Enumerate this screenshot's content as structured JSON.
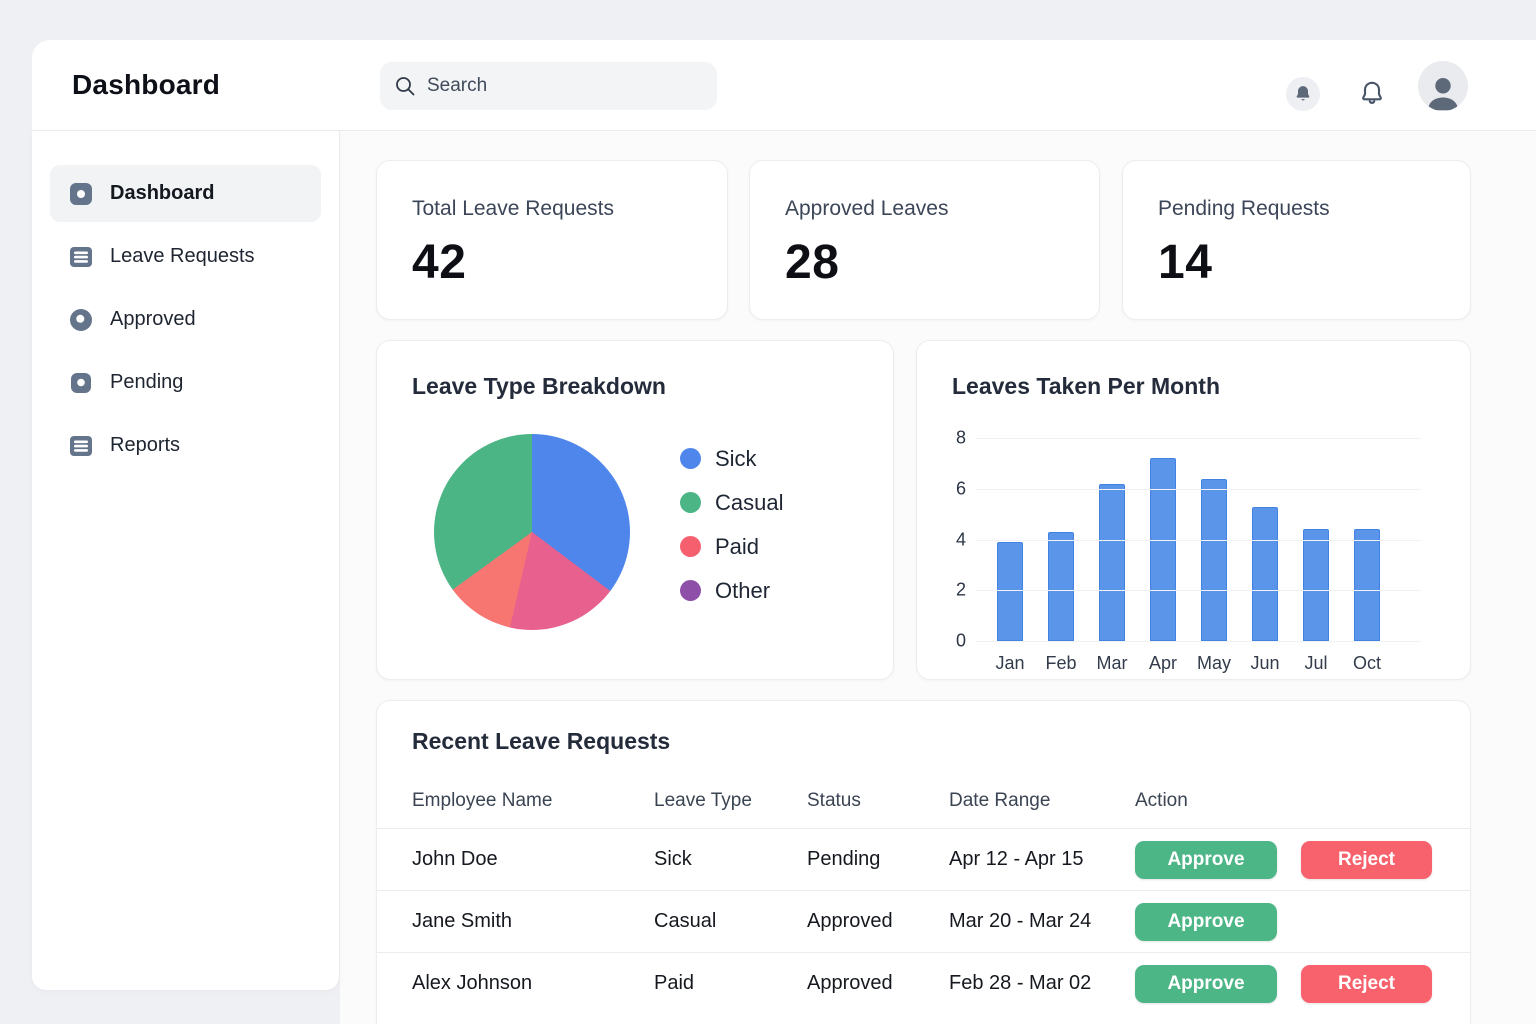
{
  "topbar": {
    "brand": "Dashboard",
    "search_placeholder": "Search",
    "icons": [
      "notification-filled-bell-icon",
      "bell-icon",
      "user-avatar"
    ]
  },
  "sidebar": {
    "items": [
      {
        "label": "Dashboard",
        "icon": "grid-dot-icon",
        "active": true
      },
      {
        "label": "Leave Requests",
        "icon": "list-icon",
        "active": false
      },
      {
        "label": "Approved",
        "icon": "circle-dot-icon",
        "active": false
      },
      {
        "label": "Pending",
        "icon": "square-dot-icon",
        "active": false
      },
      {
        "label": "Reports",
        "icon": "list-icon",
        "active": false
      }
    ]
  },
  "stats": [
    {
      "label": "Total Leave Requests",
      "value": "42"
    },
    {
      "label": "Approved Leaves",
      "value": "28"
    },
    {
      "label": "Pending Requests",
      "value": "14"
    }
  ],
  "chart_data": [
    {
      "type": "pie",
      "title": "Leave Type Breakdown",
      "start_angle_deg": 0,
      "direction": "clockwise",
      "slices": [
        {
          "label": "Sick",
          "deg": 127,
          "percent": 35,
          "color": "#4e86ec"
        },
        {
          "label": "Paid",
          "deg": 66,
          "percent": 18,
          "color": "#e8608d"
        },
        {
          "label": "Other",
          "deg": 41,
          "percent": 12,
          "color": "#f87672"
        },
        {
          "label": "Casual",
          "deg": 126,
          "percent": 35,
          "color": "#4cb585"
        }
      ],
      "legend_position": "right",
      "legend": [
        {
          "label": "Sick",
          "color": "#4e86ec"
        },
        {
          "label": "Casual",
          "color": "#4cb585"
        },
        {
          "label": "Paid",
          "color": "#f6606e"
        },
        {
          "label": "Other",
          "color": "#8d4fa8"
        }
      ]
    },
    {
      "type": "bar",
      "title": "Leaves Taken Per Month",
      "categories": [
        "Jan",
        "Feb",
        "Mar",
        "Apr",
        "May",
        "Jun",
        "Jul",
        "Oct"
      ],
      "values": [
        3.9,
        4.3,
        6.2,
        7.2,
        6.4,
        5.3,
        4.4,
        4.4
      ],
      "xlabel": "",
      "ylabel": "",
      "ylim": [
        0,
        8
      ],
      "yticks": [
        0,
        2,
        4,
        6,
        8
      ],
      "grid": true,
      "bar_color": "#5a95ea",
      "bar_border_color": "#4283e2"
    }
  ],
  "table": {
    "title": "Recent Leave Requests",
    "columns": [
      "Employee Name",
      "Leave Type",
      "Status",
      "Date Range",
      "Action"
    ],
    "action_labels": {
      "approve": "Approve",
      "reject": "Reject"
    },
    "rows": [
      {
        "employee": "John Doe",
        "leave_type": "Sick",
        "status": "Pending",
        "date_range": "Apr 12 - Apr 15",
        "actions": [
          "approve",
          "reject"
        ]
      },
      {
        "employee": "Jane Smith",
        "leave_type": "Casual",
        "status": "Approved",
        "date_range": "Mar 20 - Mar 24",
        "actions": [
          "approve"
        ]
      },
      {
        "employee": "Alex Johnson",
        "leave_type": "Paid",
        "status": "Approved",
        "date_range": "Feb 28 - Mar 02",
        "actions": [
          "approve",
          "reject"
        ]
      }
    ]
  },
  "colors": {
    "approve_green": "#4db687",
    "reject_red": "#f8626d",
    "icon_slate": "#64748b",
    "topbar_icon": "#5d6879"
  }
}
